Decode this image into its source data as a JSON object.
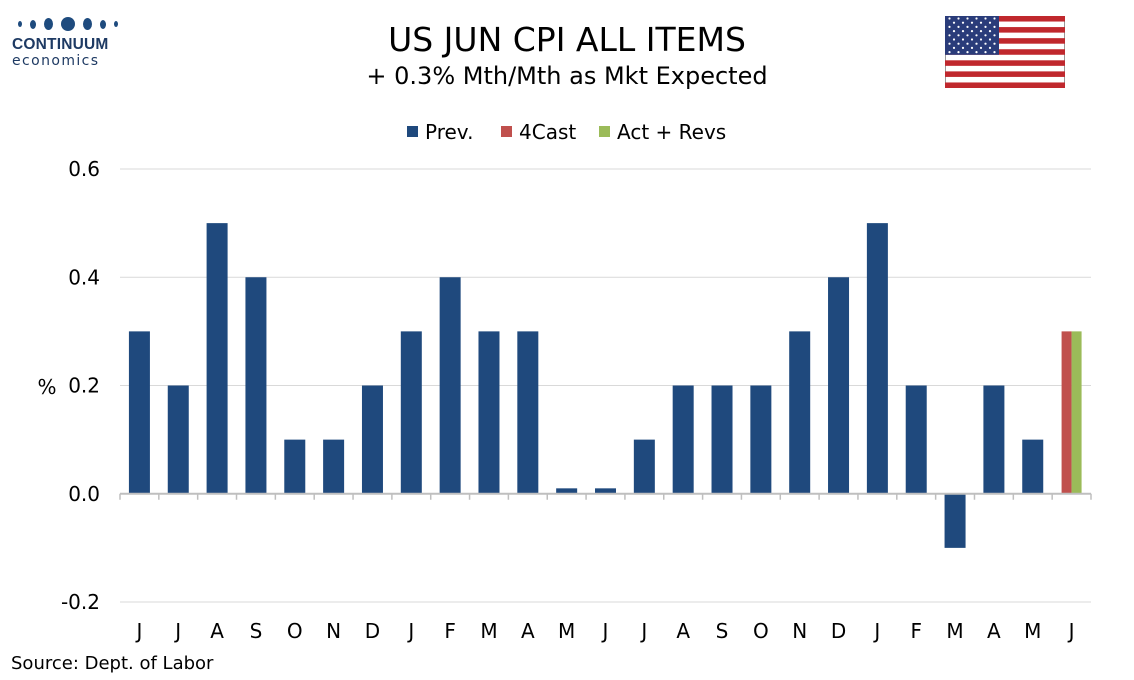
{
  "logo": {
    "name": "CONTINUUM",
    "sub": "economics"
  },
  "header": {
    "title": "US JUN CPI ALL ITEMS",
    "subtitle": "+ 0.3% Mth/Mth as Mkt Expected"
  },
  "source": "Source: Dept. of Labor",
  "colors": {
    "prev": "#1f497d",
    "fcast": "#c0504d",
    "act": "#9bbb59"
  },
  "chart_data": {
    "type": "bar",
    "title": "US JUN CPI ALL ITEMS",
    "subtitle": "+ 0.3% Mth/Mth as Mkt Expected",
    "xlabel": "",
    "ylabel": "%",
    "ylim": [
      -0.2,
      0.6
    ],
    "yticks": [
      "0.6",
      "0.4",
      "0.2",
      "0.0",
      "-0.2"
    ],
    "yticks_values": [
      0.6,
      0.4,
      0.2,
      0.0,
      -0.2
    ],
    "grid": true,
    "legend_position": "top",
    "categories": [
      "J",
      "J",
      "A",
      "S",
      "O",
      "N",
      "D",
      "J",
      "F",
      "M",
      "A",
      "M",
      "J",
      "J",
      "A",
      "S",
      "O",
      "N",
      "D",
      "J",
      "F",
      "M",
      "A",
      "M",
      "J"
    ],
    "series": [
      {
        "name": "Prev.",
        "color": "#1f497d",
        "values": [
          0.3,
          0.2,
          0.5,
          0.4,
          0.1,
          0.1,
          0.2,
          0.3,
          0.4,
          0.3,
          0.3,
          0.01,
          0.01,
          0.1,
          0.2,
          0.2,
          0.2,
          0.3,
          0.4,
          0.5,
          0.2,
          -0.1,
          0.2,
          0.1,
          null
        ]
      },
      {
        "name": "4Cast",
        "color": "#c0504d",
        "values": [
          null,
          null,
          null,
          null,
          null,
          null,
          null,
          null,
          null,
          null,
          null,
          null,
          null,
          null,
          null,
          null,
          null,
          null,
          null,
          null,
          null,
          null,
          null,
          null,
          0.3
        ]
      },
      {
        "name": "Act + Revs",
        "color": "#9bbb59",
        "values": [
          null,
          null,
          null,
          null,
          null,
          null,
          null,
          null,
          null,
          null,
          null,
          null,
          null,
          null,
          null,
          null,
          null,
          null,
          null,
          null,
          null,
          null,
          null,
          null,
          0.3
        ]
      }
    ]
  }
}
